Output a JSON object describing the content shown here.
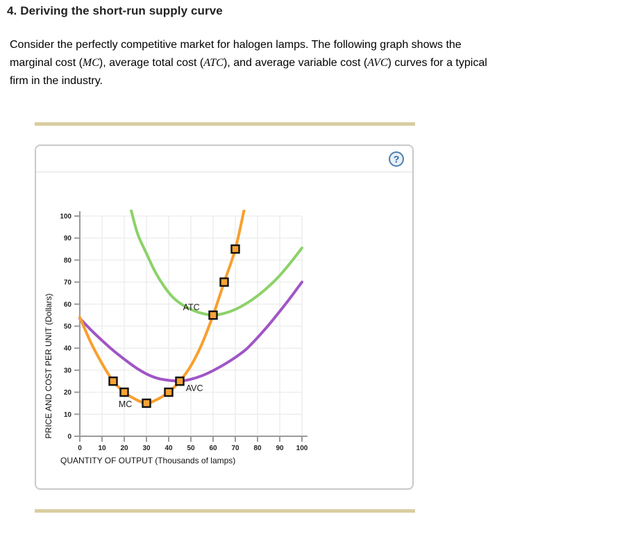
{
  "header": {
    "title": "4. Deriving the short-run supply curve"
  },
  "intro": {
    "segments": [
      {
        "text": "Consider the perfectly competitive market for halogen lamps. The following graph shows the"
      },
      {
        "br": true
      },
      {
        "text": "marginal cost ("
      },
      {
        "text": "MC",
        "italic": true
      },
      {
        "text": "), average total cost ("
      },
      {
        "text": "ATC",
        "italic": true
      },
      {
        "text": "), and average variable cost ("
      },
      {
        "text": "AVC",
        "italic": true
      },
      {
        "text": ") curves for a typical"
      },
      {
        "br": true
      },
      {
        "text": "firm in the industry."
      }
    ]
  },
  "panel": {
    "help_icon": "?",
    "divider_color": "#d9cda1",
    "border_color": "#c9c9c9"
  },
  "chart_data": {
    "type": "line",
    "title": "",
    "xlabel": "QUANTITY OF OUTPUT (Thousands of lamps)",
    "ylabel": "PRICE AND COST PER UNIT (Dollars)",
    "xlim": [
      0,
      100
    ],
    "ylim": [
      0,
      100
    ],
    "xticks": [
      0,
      10,
      20,
      30,
      40,
      50,
      60,
      70,
      80,
      90,
      100
    ],
    "yticks": [
      0,
      10,
      20,
      30,
      40,
      50,
      60,
      70,
      80,
      90,
      100
    ],
    "grid": true,
    "legend_position": "inline-labels",
    "series": [
      {
        "name": "ATC",
        "color": "#8cd26a",
        "points": [
          [
            23,
            103
          ],
          [
            26,
            92
          ],
          [
            30,
            83
          ],
          [
            34,
            74.5
          ],
          [
            38,
            68
          ],
          [
            42,
            63
          ],
          [
            46,
            59.8
          ],
          [
            50,
            57.6
          ],
          [
            55,
            55.8
          ],
          [
            60,
            55
          ],
          [
            65,
            55.8
          ],
          [
            70,
            57.6
          ],
          [
            75,
            60.3
          ],
          [
            80,
            63.8
          ],
          [
            85,
            68
          ],
          [
            90,
            73
          ],
          [
            95,
            79
          ],
          [
            100,
            85.5
          ]
        ],
        "label": {
          "text": "ATC",
          "x": 50.2,
          "y": 58.5
        }
      },
      {
        "name": "AVC",
        "color": "#a055c6",
        "points": [
          [
            0,
            53.5
          ],
          [
            5,
            48.3
          ],
          [
            10,
            43.5
          ],
          [
            15,
            39
          ],
          [
            20,
            35
          ],
          [
            25,
            31.3
          ],
          [
            30,
            28.3
          ],
          [
            35,
            26.3
          ],
          [
            40,
            25.4
          ],
          [
            45,
            25.1
          ],
          [
            50,
            25.9
          ],
          [
            55,
            27.5
          ],
          [
            60,
            29.8
          ],
          [
            65,
            32.6
          ],
          [
            70,
            35.8
          ],
          [
            75,
            39.6
          ],
          [
            80,
            44.8
          ],
          [
            85,
            50.5
          ],
          [
            90,
            56.7
          ],
          [
            95,
            63.2
          ],
          [
            100,
            70
          ]
        ],
        "label": {
          "text": "AVC",
          "x": 51.6,
          "y": 21.7
        }
      },
      {
        "name": "MC",
        "color": "#f89f2e",
        "points": [
          [
            0,
            54
          ],
          [
            5,
            42.5
          ],
          [
            10,
            33
          ],
          [
            15,
            25
          ],
          [
            20,
            20
          ],
          [
            25,
            16.8
          ],
          [
            30,
            15
          ],
          [
            35,
            16.8
          ],
          [
            40,
            20
          ],
          [
            45,
            25
          ],
          [
            50,
            32
          ],
          [
            55,
            42
          ],
          [
            60,
            55
          ],
          [
            65,
            70
          ],
          [
            70,
            85
          ],
          [
            74,
            103
          ]
        ],
        "label": {
          "text": "MC",
          "x": 20.5,
          "y": 14.5
        }
      }
    ],
    "markers": {
      "series": "MC",
      "shape": "square",
      "fill": "#f9a332",
      "stroke": "#111111",
      "points": [
        [
          15,
          25
        ],
        [
          20,
          20
        ],
        [
          30,
          15
        ],
        [
          40,
          20
        ],
        [
          45,
          25
        ],
        [
          60,
          55
        ],
        [
          65,
          70
        ],
        [
          70,
          85
        ]
      ]
    }
  }
}
